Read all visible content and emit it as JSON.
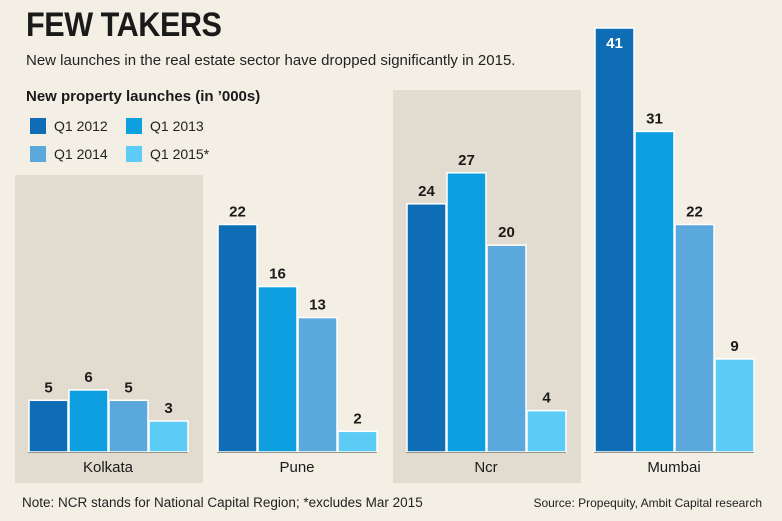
{
  "title": "FEW TAKERS",
  "subtitle": "New launches in the real estate sector have dropped significantly in 2015.",
  "unit_label": "New property launches (in ’000s)",
  "note": "Note: NCR stands for National Capital Region; *excludes Mar 2015",
  "source": "Source: Propequity, Ambit Capital research",
  "colors": {
    "background": "#f3efe4",
    "panel": "#e1dccf",
    "series": [
      "#0f6db6",
      "#0e9fe0",
      "#5ba8dc",
      "#5ccbf6"
    ]
  },
  "chart_data": {
    "type": "bar",
    "categories": [
      "Kolkata",
      "Pune",
      "Ncr",
      "Mumbai"
    ],
    "series": [
      {
        "name": "Q1 2012",
        "values": [
          5,
          22,
          24,
          41
        ]
      },
      {
        "name": "Q1 2013",
        "values": [
          6,
          16,
          27,
          31
        ]
      },
      {
        "name": "Q1 2014",
        "values": [
          5,
          13,
          20,
          22
        ]
      },
      {
        "name": "Q1 2015*",
        "values": [
          3,
          2,
          4,
          9
        ]
      }
    ],
    "ylim": [
      0,
      41
    ],
    "data_labels": true,
    "grid": false,
    "legend_position": "top-left"
  }
}
